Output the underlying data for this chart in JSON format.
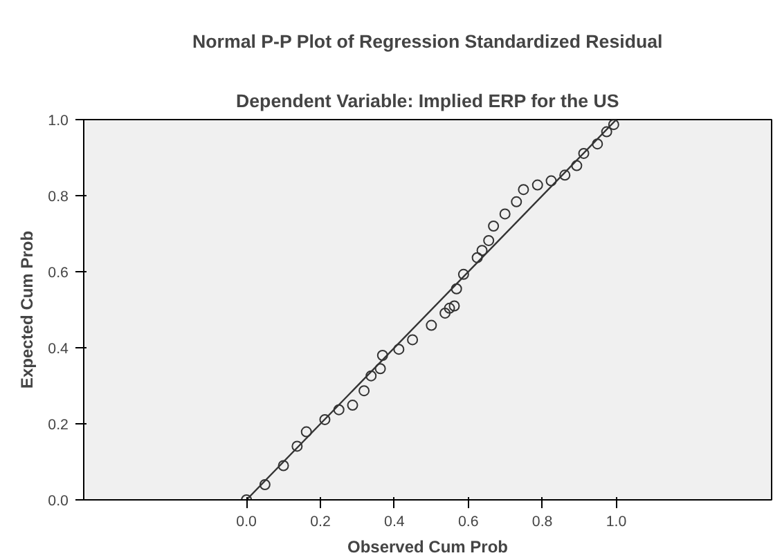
{
  "chart_data": {
    "type": "scatter",
    "title": "Normal P-P Plot of Regression Standardized Residual",
    "subtitle": "Dependent Variable: Implied ERP for the US",
    "xlabel": "Observed Cum Prob",
    "ylabel": "Expected Cum Prob",
    "xlim": [
      -0.44,
      1.42
    ],
    "ylim": [
      0,
      1
    ],
    "xticks": [
      {
        "value": 0,
        "label": "0.0"
      },
      {
        "value": 0.2,
        "label": "0.2"
      },
      {
        "value": 0.4,
        "label": "0.4"
      },
      {
        "value": 0.6,
        "label": "0.6"
      },
      {
        "value": 0.8,
        "label": "0.8"
      },
      {
        "value": 1,
        "label": "1.0"
      }
    ],
    "yticks": [
      {
        "value": 0,
        "label": "0.0"
      },
      {
        "value": 0.2,
        "label": "0.2"
      },
      {
        "value": 0.4,
        "label": "0.4"
      },
      {
        "value": 0.6,
        "label": "0.6"
      },
      {
        "value": 0.8,
        "label": "0.8"
      },
      {
        "value": 1,
        "label": "1.0"
      }
    ],
    "grid": false,
    "series": [
      {
        "marker": "circle",
        "color": "#333333",
        "x": [
          0,
          0.05,
          0.1,
          0.137,
          0.162,
          0.212,
          0.25,
          0.287,
          0.318,
          0.337,
          0.362,
          0.368,
          0.412,
          0.449,
          0.5,
          0.537,
          0.549,
          0.562,
          0.568,
          0.587,
          0.624,
          0.637,
          0.655,
          0.668,
          0.699,
          0.73,
          0.749,
          0.787,
          0.824,
          0.861,
          0.893,
          0.912,
          0.949,
          0.974,
          0.993
        ],
        "values": [
          0,
          0.04,
          0.09,
          0.141,
          0.179,
          0.211,
          0.237,
          0.249,
          0.287,
          0.326,
          0.345,
          0.38,
          0.396,
          0.421,
          0.459,
          0.491,
          0.504,
          0.51,
          0.555,
          0.593,
          0.637,
          0.656,
          0.682,
          0.72,
          0.752,
          0.784,
          0.816,
          0.828,
          0.839,
          0.854,
          0.879,
          0.911,
          0.936,
          0.968,
          0.987
        ]
      },
      {
        "type": "line",
        "marker": "none",
        "color": "#333333",
        "x": [
          0,
          1
        ],
        "values": [
          0,
          1
        ]
      }
    ]
  }
}
